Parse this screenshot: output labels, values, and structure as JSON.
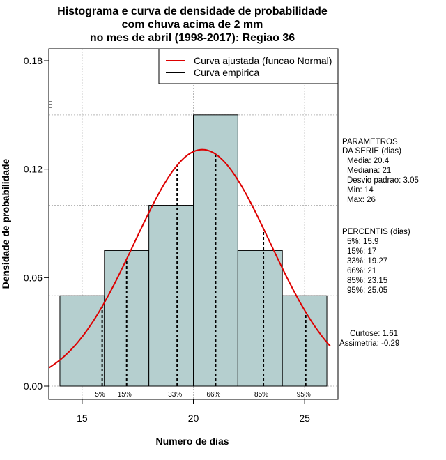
{
  "chart_data": {
    "type": "bar",
    "title_lines": [
      "Histograma e curva de densidade de probabilidade",
      "com chuva acima de 2 mm",
      "no mes de abril (1998-2017): Regiao 36"
    ],
    "xlabel": "Numero de dias",
    "ylabel": "Densidade de probabilidade",
    "xlim": [
      13.5,
      26.5
    ],
    "ylim": [
      0,
      0.18
    ],
    "x_ticks": [
      15,
      20,
      25
    ],
    "y_ticks": [
      0.0,
      0.06,
      0.12,
      0.18
    ],
    "y_tick_labels": [
      "0.00",
      "0.06",
      "0.12",
      "0.18"
    ],
    "bins": [
      {
        "start": 14,
        "end": 16,
        "density": 0.05
      },
      {
        "start": 16,
        "end": 18,
        "density": 0.075
      },
      {
        "start": 18,
        "end": 20,
        "density": 0.1
      },
      {
        "start": 20,
        "end": 22,
        "density": 0.15
      },
      {
        "start": 22,
        "end": 24,
        "density": 0.075
      },
      {
        "start": 24,
        "end": 26,
        "density": 0.05
      }
    ],
    "bar_color": "#b5cfcf",
    "fitted_curve": {
      "name": "Curva ajustada (funcao Normal)",
      "mean": 20.4,
      "sd": 3.05,
      "color": "#dd0000"
    },
    "empirical_curve": {
      "name": "Curva empirica",
      "color": "#000000"
    },
    "percentile_lines": [
      {
        "x": 15.9,
        "label": "5%"
      },
      {
        "x": 17,
        "label": "15%"
      },
      {
        "x": 19.27,
        "label": "33%"
      },
      {
        "x": 21,
        "label": "66%"
      },
      {
        "x": 23.15,
        "label": "85%"
      },
      {
        "x": 25.05,
        "label": "95%"
      }
    ],
    "legend": {
      "position": "top-right",
      "entries": [
        {
          "label": "Curva ajustada (funcao Normal)",
          "color": "#dd0000"
        },
        {
          "label": "Curva empirica",
          "color": "#000000"
        }
      ]
    },
    "grid": true
  },
  "stats_panel": {
    "parametros": [
      "PARAMETROS",
      "DA SERIE (dias)",
      "Media: 20.4",
      "Mediana: 21",
      "Desvio padrao: 3.05",
      "Min: 14",
      "Max: 26"
    ],
    "percentis": [
      "PERCENTIS (dias)",
      "5%: 15.9",
      "15%: 17",
      "33%: 19.27",
      "66%: 21",
      "85%: 23.15",
      "95%: 25.05"
    ],
    "shape": [
      "Curtose: 1.61",
      "Assimetria: -0.29"
    ]
  }
}
